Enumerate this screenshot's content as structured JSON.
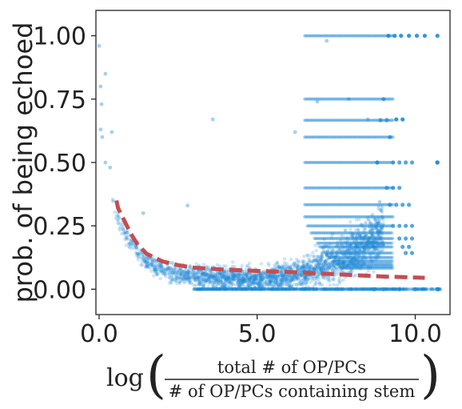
{
  "chart_data": {
    "type": "scatter",
    "xlabel": {
      "prefix": "log",
      "numerator": "total # of OP/PCs",
      "denominator": "# of OP/PCs containing stem"
    },
    "ylabel": "prob. of being echoed",
    "xlim": [
      -0.1,
      11.1
    ],
    "ylim": [
      -0.1,
      1.1
    ],
    "x_ticks": [
      {
        "value": 0,
        "label": "0.0"
      },
      {
        "value": 5,
        "label": "5.0"
      },
      {
        "value": 10,
        "label": "10.0"
      }
    ],
    "y_ticks": [
      {
        "value": 0,
        "label": "0.00"
      },
      {
        "value": 0.25,
        "label": "0.25"
      },
      {
        "value": 0.5,
        "label": "0.50"
      },
      {
        "value": 0.75,
        "label": "0.75"
      },
      {
        "value": 1.0,
        "label": "1.00"
      }
    ],
    "scatter": {
      "color": "#1f8ad6",
      "notable_points": [
        {
          "x": 0.0,
          "y": 0.96
        },
        {
          "x": 0.05,
          "y": 0.8
        },
        {
          "x": 0.08,
          "y": 0.73
        },
        {
          "x": 0.2,
          "y": 0.85
        },
        {
          "x": 0.05,
          "y": 0.63
        },
        {
          "x": 0.1,
          "y": 0.6
        },
        {
          "x": 0.4,
          "y": 0.62
        },
        {
          "x": 0.2,
          "y": 0.5
        },
        {
          "x": 0.35,
          "y": 0.48
        },
        {
          "x": 3.6,
          "y": 0.67
        },
        {
          "x": 6.2,
          "y": 0.62
        },
        {
          "x": 6.9,
          "y": 0.74
        },
        {
          "x": 7.2,
          "y": 0.98
        },
        {
          "x": 7.9,
          "y": 0.75
        },
        {
          "x": 8.5,
          "y": 0.67
        },
        {
          "x": 2.8,
          "y": 0.33
        },
        {
          "x": 1.4,
          "y": 0.3
        }
      ],
      "ratio_bands": [
        1,
        0.5,
        0.6667,
        0.3333,
        0.25,
        0.2,
        0.1667,
        0.1429,
        0.125,
        0.1111,
        0.1,
        0.0909,
        0.0833,
        0.75,
        0.4,
        0.6,
        0.2857,
        0.2222,
        0.1818,
        0.0
      ],
      "band_points": [
        {
          "x": 9.15,
          "y": 1.0
        },
        {
          "x": 9.35,
          "y": 1.0
        },
        {
          "x": 9.55,
          "y": 1.0
        },
        {
          "x": 9.8,
          "y": 1.0
        },
        {
          "x": 10.05,
          "y": 1.0
        },
        {
          "x": 10.3,
          "y": 1.0
        },
        {
          "x": 10.7,
          "y": 1.0
        },
        {
          "x": 10.72,
          "y": 0.0
        },
        {
          "x": 10.7,
          "y": 0.5
        },
        {
          "x": 8.8,
          "y": 0.5
        },
        {
          "x": 9.4,
          "y": 0.67
        },
        {
          "x": 9.6,
          "y": 0.67
        }
      ]
    },
    "trend_line": {
      "color": "#c44e52",
      "style": "dashed",
      "x": [
        0.55,
        0.6,
        0.8,
        1.0,
        1.2,
        1.5,
        2.0,
        2.5,
        3.0,
        4.0,
        5.0,
        6.0,
        7.0,
        8.0,
        9.0,
        10.3
      ],
      "y": [
        0.35,
        0.32,
        0.27,
        0.22,
        0.18,
        0.14,
        0.11,
        0.095,
        0.085,
        0.077,
        0.072,
        0.068,
        0.062,
        0.056,
        0.05,
        0.045
      ]
    }
  }
}
